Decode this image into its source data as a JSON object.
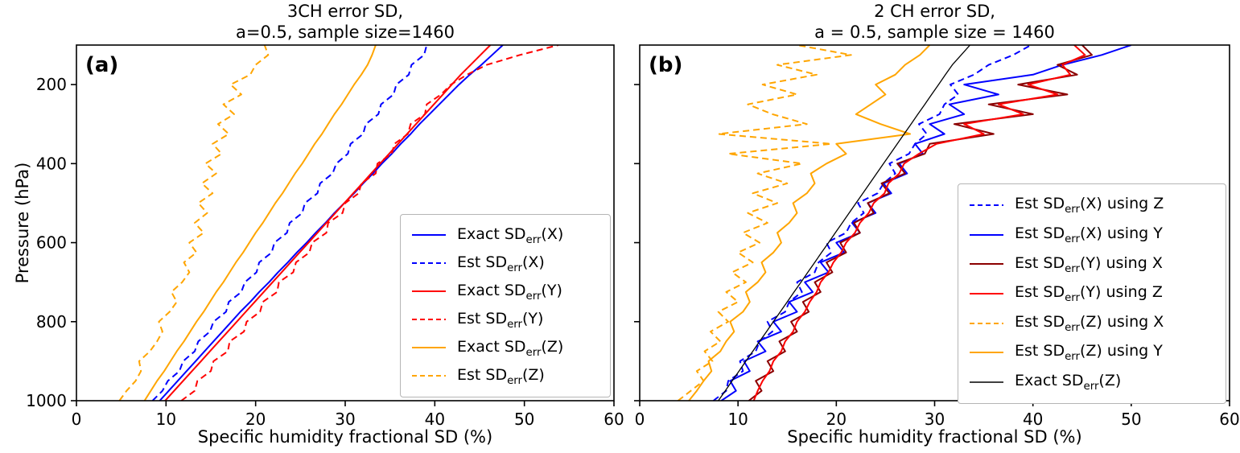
{
  "figure": {
    "background": "#ffffff",
    "text_color": "#000000"
  },
  "chart_data": [
    {
      "type": "line",
      "panel_letter": "(a)",
      "title_lines": [
        "3CH error SD,",
        "a=0.5, sample size=1460"
      ],
      "xlabel": "Specific humidity fractional SD (%)",
      "ylabel": "Pressure (hPa)",
      "xlim": [
        0,
        60
      ],
      "ylim": [
        1000,
        100
      ],
      "x_ticks": [
        0,
        10,
        20,
        30,
        40,
        50,
        60
      ],
      "y_ticks": [
        200,
        400,
        600,
        800,
        1000
      ],
      "show_y_tick_labels": true,
      "grid": false,
      "legend_location": "lower right",
      "pressure_hPa": [
        1000,
        975,
        950,
        925,
        900,
        875,
        850,
        825,
        800,
        775,
        750,
        725,
        700,
        675,
        650,
        625,
        600,
        575,
        550,
        525,
        500,
        475,
        450,
        425,
        400,
        375,
        350,
        325,
        300,
        275,
        250,
        225,
        200,
        175,
        150,
        125,
        100
      ],
      "series": [
        {
          "label_pre": "Exact SD",
          "label_sub": "err",
          "label_post": "(X)",
          "color": "#0000ff",
          "dash": false,
          "width": 2,
          "values": [
            9.3,
            10.3,
            11.3,
            12.3,
            13.3,
            14.3,
            15.3,
            16.3,
            17.3,
            18.3,
            19.4,
            20.4,
            21.5,
            22.5,
            23.6,
            24.6,
            25.7,
            26.7,
            27.8,
            28.8,
            29.9,
            31.0,
            32.0,
            33.1,
            34.1,
            35.2,
            36.2,
            37.3,
            38.3,
            39.4,
            40.5,
            41.6,
            42.7,
            43.9,
            45.2,
            46.4,
            47.6
          ]
        },
        {
          "label_pre": "Est SD",
          "label_sub": "err",
          "label_post": "(X)",
          "color": "#0000ff",
          "dash": true,
          "width": 2,
          "values": [
            8.5,
            9.6,
            10.2,
            11.5,
            11.9,
            13.2,
            13.6,
            14.9,
            15.3,
            16.7,
            17.0,
            18.4,
            18.8,
            20.1,
            20.4,
            21.8,
            22.1,
            23.5,
            23.8,
            25.2,
            25.5,
            26.9,
            27.2,
            28.6,
            29.0,
            30.3,
            30.6,
            32.0,
            32.3,
            33.7,
            34.0,
            35.4,
            35.7,
            37.1,
            37.4,
            38.8,
            39.1
          ]
        },
        {
          "label_pre": "Exact SD",
          "label_sub": "err",
          "label_post": "(Y)",
          "color": "#ff0000",
          "dash": false,
          "width": 2,
          "values": [
            9.9,
            10.9,
            11.9,
            12.9,
            13.9,
            14.9,
            15.9,
            16.9,
            17.9,
            18.9,
            19.9,
            20.9,
            21.9,
            22.9,
            23.9,
            24.9,
            25.9,
            26.9,
            27.9,
            28.9,
            29.9,
            30.9,
            31.9,
            32.9,
            33.9,
            34.9,
            35.9,
            36.9,
            37.9,
            38.9,
            39.9,
            40.9,
            41.9,
            42.9,
            44.0,
            45.1,
            46.2
          ]
        },
        {
          "label_pre": "Est SD",
          "label_sub": "err",
          "label_post": "(Y)",
          "color": "#ff0000",
          "dash": true,
          "width": 2,
          "values": [
            11.7,
            13.2,
            13.5,
            15.0,
            15.3,
            16.9,
            17.1,
            18.7,
            19.0,
            20.5,
            20.8,
            22.4,
            22.6,
            24.2,
            24.5,
            26.0,
            26.3,
            27.9,
            28.1,
            29.7,
            30.0,
            31.5,
            31.8,
            33.4,
            33.6,
            35.2,
            35.5,
            37.0,
            37.3,
            38.9,
            39.1,
            40.7,
            41.8,
            43.6,
            45.8,
            49.5,
            53.8
          ]
        },
        {
          "label_pre": "Exact SD",
          "label_sub": "err",
          "label_post": "(Z)",
          "color": "#ffa500",
          "dash": false,
          "width": 2,
          "values": [
            7.6,
            8.3,
            9.0,
            9.8,
            10.5,
            11.2,
            12.0,
            12.7,
            13.4,
            14.2,
            14.9,
            15.6,
            16.4,
            17.1,
            17.8,
            18.6,
            19.3,
            20.0,
            20.8,
            21.5,
            22.2,
            23.0,
            23.7,
            24.4,
            25.2,
            25.9,
            26.6,
            27.4,
            28.1,
            28.8,
            29.6,
            30.3,
            31.0,
            31.8,
            32.5,
            33.0,
            33.4
          ]
        },
        {
          "label_pre": "Est SD",
          "label_sub": "err",
          "label_post": "(Z)",
          "color": "#ffa500",
          "dash": true,
          "width": 2,
          "values": [
            4.8,
            5.6,
            6.6,
            7.2,
            7.0,
            8.2,
            9.0,
            9.6,
            9.2,
            10.4,
            11.2,
            10.6,
            11.8,
            12.6,
            12.0,
            13.4,
            12.6,
            14.2,
            13.2,
            14.6,
            13.6,
            15.2,
            14.0,
            15.6,
            14.4,
            16.2,
            15.2,
            17.0,
            15.8,
            17.6,
            16.4,
            18.4,
            17.2,
            19.4,
            20.0,
            21.4,
            21.0
          ]
        }
      ]
    },
    {
      "type": "line",
      "panel_letter": "(b)",
      "title_lines": [
        "2 CH error SD,",
        "a = 0.5, sample size = 1460"
      ],
      "xlabel": "Specific humidity fractional SD (%)",
      "ylabel": "",
      "xlim": [
        0,
        60
      ],
      "ylim": [
        1000,
        100
      ],
      "x_ticks": [
        0,
        10,
        20,
        30,
        40,
        50,
        60
      ],
      "y_ticks": [
        200,
        400,
        600,
        800,
        1000
      ],
      "show_y_tick_labels": false,
      "grid": false,
      "legend_location": "center right",
      "pressure_hPa": [
        1000,
        975,
        950,
        925,
        900,
        875,
        850,
        825,
        800,
        775,
        750,
        725,
        700,
        675,
        650,
        625,
        600,
        575,
        550,
        525,
        500,
        475,
        450,
        425,
        400,
        375,
        350,
        325,
        300,
        275,
        250,
        225,
        200,
        175,
        150,
        125,
        100
      ],
      "series": [
        {
          "label_pre": "Est SD",
          "label_sub": "err",
          "label_post": "(X) using Z",
          "color": "#0000ff",
          "dash": true,
          "width": 2,
          "values": [
            7.5,
            8.8,
            9.0,
            10.5,
            10.2,
            11.8,
            12.2,
            13.5,
            13.0,
            14.8,
            15.2,
            16.5,
            16.0,
            17.8,
            18.2,
            19.5,
            19.0,
            21.0,
            21.5,
            22.8,
            22.2,
            24.2,
            24.8,
            26.0,
            25.4,
            27.4,
            28.0,
            29.2,
            28.4,
            30.5,
            31.0,
            32.4,
            31.6,
            34.0,
            35.5,
            38.0,
            39.8
          ]
        },
        {
          "label_pre": "Est SD",
          "label_sub": "err",
          "label_post": "(X) using Y",
          "color": "#0000ff",
          "dash": false,
          "width": 2,
          "values": [
            8.3,
            9.8,
            9.2,
            11.2,
            10.6,
            12.8,
            12.0,
            14.4,
            13.6,
            16.0,
            15.2,
            17.6,
            16.8,
            19.2,
            18.4,
            20.8,
            20.0,
            22.4,
            21.6,
            24.0,
            23.2,
            25.6,
            24.8,
            27.2,
            26.4,
            28.8,
            28.0,
            31.0,
            29.5,
            33.0,
            31.5,
            36.5,
            33.0,
            40.0,
            43.0,
            47.0,
            50.0
          ]
        },
        {
          "label_pre": "Est SD",
          "label_sub": "err",
          "label_post": "(Y) using X",
          "color": "#8b0000",
          "dash": false,
          "width": 2,
          "values": [
            11.1,
            12.4,
            11.8,
            13.6,
            13.0,
            14.8,
            14.2,
            16.0,
            15.4,
            17.2,
            16.6,
            18.4,
            17.8,
            19.6,
            19.0,
            21.0,
            20.4,
            22.4,
            21.8,
            23.8,
            23.2,
            25.4,
            24.6,
            27.0,
            26.2,
            29.0,
            29.5,
            36.0,
            32.0,
            40.0,
            35.5,
            43.5,
            38.5,
            44.5,
            42.5,
            46.0,
            45.0
          ]
        },
        {
          "label_pre": "Est SD",
          "label_sub": "err",
          "label_post": "(Y) using Z",
          "color": "#ff0000",
          "dash": false,
          "width": 2,
          "values": [
            11.6,
            12.0,
            12.5,
            13.2,
            13.6,
            14.4,
            14.8,
            15.6,
            16.0,
            16.8,
            17.3,
            18.0,
            18.4,
            19.2,
            19.7,
            20.5,
            21.0,
            21.9,
            22.4,
            23.3,
            23.8,
            24.9,
            25.3,
            26.4,
            26.9,
            28.4,
            30.2,
            35.0,
            33.0,
            39.0,
            36.5,
            42.5,
            39.5,
            43.8,
            43.0,
            45.3,
            44.2
          ]
        },
        {
          "label_pre": "Est SD",
          "label_sub": "err",
          "label_post": "(Z) using X",
          "color": "#ffa500",
          "dash": true,
          "width": 2,
          "values": [
            3.9,
            5.2,
            6.5,
            5.8,
            7.4,
            6.6,
            8.2,
            7.2,
            9.0,
            8.0,
            10.0,
            8.8,
            10.8,
            9.4,
            11.5,
            10.0,
            12.2,
            10.5,
            13.0,
            11.0,
            14.0,
            11.5,
            15.0,
            12.0,
            16.5,
            9.0,
            19.5,
            8.0,
            17.0,
            13.5,
            11.0,
            16.0,
            12.5,
            18.0,
            14.0,
            21.5,
            16.0
          ]
        },
        {
          "label_pre": "Est SD",
          "label_sub": "err",
          "label_post": "(Z) using Y",
          "color": "#ffa500",
          "dash": false,
          "width": 2,
          "values": [
            5.0,
            5.8,
            6.5,
            7.3,
            7.0,
            8.2,
            8.8,
            9.6,
            9.2,
            10.5,
            11.2,
            10.8,
            12.0,
            12.8,
            12.4,
            13.6,
            14.4,
            14.0,
            15.2,
            16.0,
            15.6,
            17.0,
            17.8,
            17.4,
            19.0,
            21.0,
            20.0,
            27.5,
            24.5,
            22.0,
            23.5,
            25.0,
            24.0,
            26.0,
            27.0,
            28.5,
            29.5
          ]
        },
        {
          "label_pre": "Exact SD",
          "label_sub": "err",
          "label_post": "(Z)",
          "color": "#000000",
          "dash": false,
          "width": 1.3,
          "values": [
            8.0,
            8.7,
            9.4,
            10.1,
            10.8,
            11.5,
            12.2,
            12.9,
            13.6,
            14.3,
            15.0,
            15.7,
            16.4,
            17.1,
            17.8,
            18.5,
            19.2,
            19.9,
            20.6,
            21.3,
            22.0,
            22.7,
            23.4,
            24.1,
            24.8,
            25.5,
            26.2,
            26.9,
            27.6,
            28.3,
            29.0,
            29.7,
            30.4,
            31.1,
            31.8,
            32.7,
            33.6
          ]
        }
      ]
    }
  ]
}
